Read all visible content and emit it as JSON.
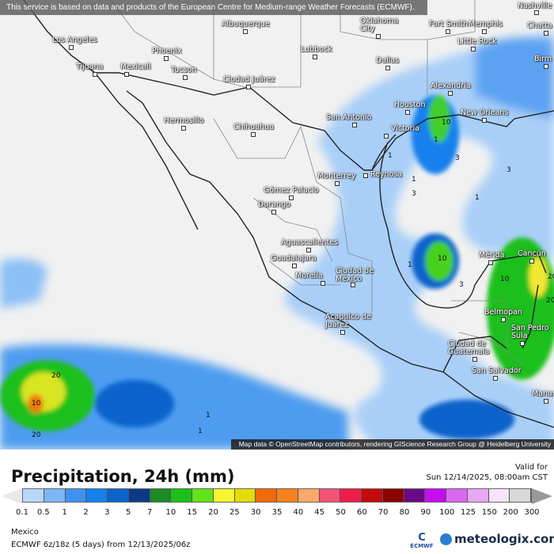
{
  "map": {
    "notice": "This service is based on data and products of the European Centre for Medium-range Weather Forecasts (ECMWF).",
    "attribution": "Map data © OpenStreetMap contributors, rendering GIScience Research Group @ Heidelberg University",
    "cities": [
      "Los Angeles",
      "Tijuana",
      "Mexicali",
      "Phoenix",
      "Tucson",
      "Albuquerque",
      "Lubbock",
      "Oklahoma City",
      "Fort Smith",
      "Memphis",
      "Nashville",
      "Little Rock",
      "Chatta",
      "Birm",
      "Dallas",
      "Ciudad Juárez",
      "Hermosillo",
      "Chihuahua",
      "San Antonio",
      "Houston",
      "Victoria",
      "Alexandria",
      "New Orleans",
      "Reynosa",
      "Monterrey",
      "Gómez Palacio",
      "Durango",
      "Aguascalientes",
      "Guadalajara",
      "Morelia",
      "Ciudad de México",
      "Acapulco de Juárez",
      "Mérida",
      "Cancún",
      "Belmopan",
      "San Pedro Sula",
      "Ciudad de Guatemala",
      "San Salvador",
      "Managua"
    ],
    "contour_labels": [
      "1",
      "3",
      "10",
      "1",
      "1",
      "3",
      "1",
      "10",
      "1",
      "3",
      "10",
      "20",
      "20",
      "10",
      "20",
      "1",
      "1",
      "3",
      "20"
    ]
  },
  "legend": {
    "title": "Precipitation, 24h (mm)",
    "valid_label": "Valid for",
    "valid_time": "Sun 12/14/2025, 08:00am CST",
    "ticks": [
      "0.1",
      "0.5",
      "1",
      "2",
      "3",
      "5",
      "7",
      "10",
      "15",
      "20",
      "25",
      "30",
      "35",
      "40",
      "45",
      "50",
      "60",
      "70",
      "80",
      "90",
      "100",
      "125",
      "150",
      "200",
      "300"
    ],
    "colors": [
      "#b8d8fb",
      "#7cb6f7",
      "#3e93f0",
      "#1380ee",
      "#0b63cc",
      "#0a3a86",
      "#1c8a25",
      "#1dc01a",
      "#62e31a",
      "#f6f630",
      "#e4db05",
      "#f06a06",
      "#f7821f",
      "#fca86a",
      "#f45377",
      "#ee1d4c",
      "#c40a0a",
      "#8b0000",
      "#6a0a86",
      "#c60cf1",
      "#da68f2",
      "#e9a8f6",
      "#f7e3fb",
      "#d8d8d8"
    ],
    "region": "Mexico",
    "model_run": "ECMWF 6z/18z (5 days) from 12/13/2025/06z",
    "ecmwf_logo": "ECMWF",
    "brand": "meteologix.com"
  }
}
